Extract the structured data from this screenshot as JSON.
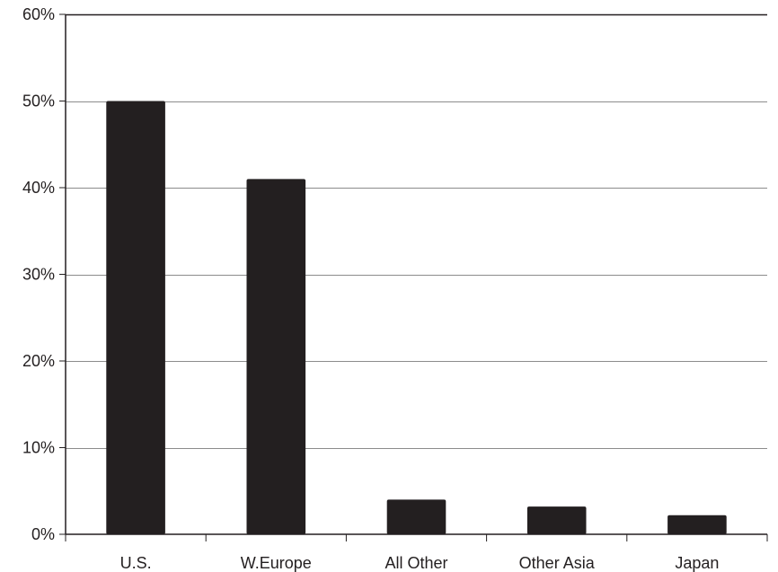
{
  "chart_data": {
    "type": "bar",
    "title": "",
    "xlabel": "",
    "ylabel": "",
    "categories": [
      "U.S.",
      "W.Europe",
      "All Other",
      "Other Asia",
      "Japan"
    ],
    "values": [
      50,
      41,
      4,
      3.2,
      2.2
    ],
    "ylim": [
      0,
      60
    ],
    "y_ticks": [
      0,
      10,
      20,
      30,
      40,
      50,
      60
    ],
    "y_tick_labels": [
      "0%",
      "10%",
      "20%",
      "30%",
      "40%",
      "50%",
      "60%"
    ],
    "grid": true,
    "legend": "none",
    "bar_color": "#231f20",
    "grid_color": "#8c8c8c",
    "axis_color": "#231f20"
  }
}
